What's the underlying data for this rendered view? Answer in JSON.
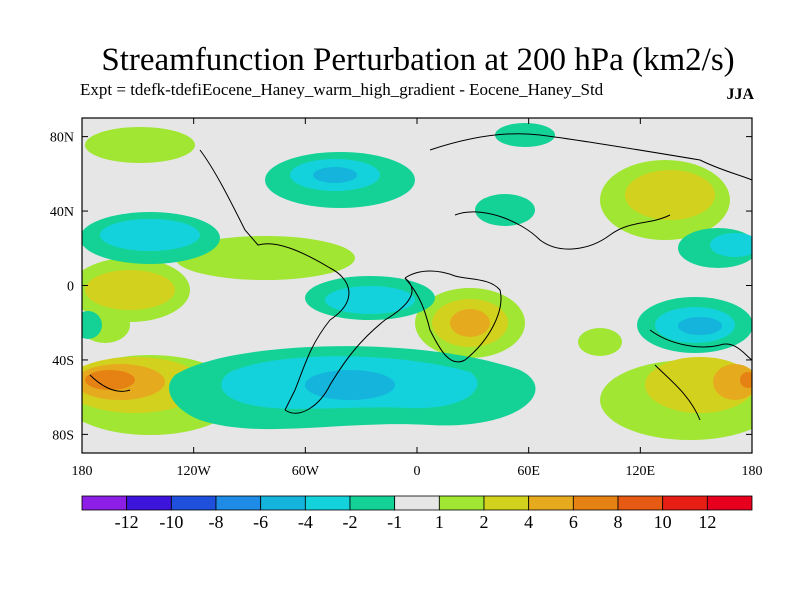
{
  "title": "Streamfunction Perturbation at 200 hPa (km2/s)",
  "subtitle": "Expt = tdefk-tdefiEocene_Haney_warm_high_gradient - Eocene_Haney_Std",
  "season": "JJA",
  "map": {
    "background_color": "#e6e6e6",
    "lon_range": [
      -180,
      180
    ],
    "lat_range": [
      -90,
      90
    ],
    "lon_tick_labels": [
      "180",
      "120W",
      "60W",
      "0",
      "60E",
      "120E",
      "180"
    ],
    "lat_tick_labels": [
      "80N",
      "40N",
      "0",
      "40S",
      "80S"
    ]
  },
  "colorbar": {
    "labels": [
      "-12",
      "-10",
      "-8",
      "-6",
      "-4",
      "-2",
      "-1",
      "1",
      "2",
      "4",
      "6",
      "8",
      "10",
      "12"
    ],
    "colors": [
      "#8c1ee6",
      "#3c14dc",
      "#1e50dc",
      "#1e8ce6",
      "#14b4dc",
      "#14d2dc",
      "#14d296",
      "#e6e6e6",
      "#a0e632",
      "#d2d21e",
      "#e6aa1e",
      "#e68214",
      "#e65a14",
      "#e61e14",
      "#e6001e"
    ]
  }
}
